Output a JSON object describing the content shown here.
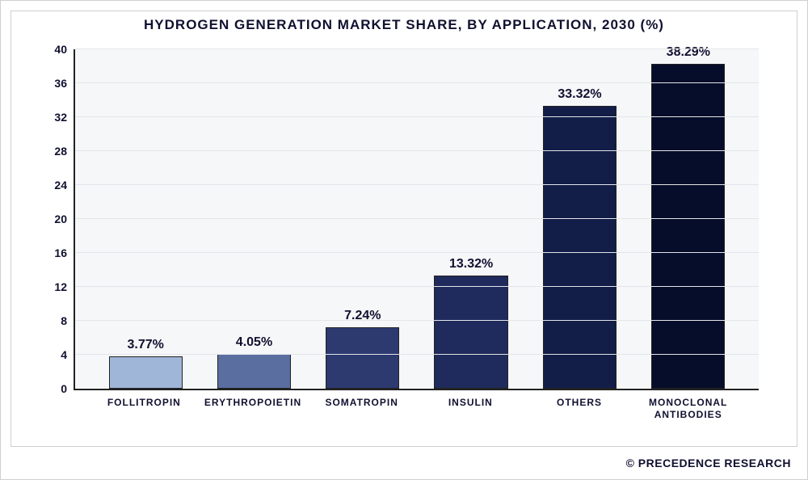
{
  "chart": {
    "type": "bar",
    "title": "HYDROGEN GENERATION MARKET SHARE, BY APPLICATION, 2030 (%)",
    "title_fontsize": 17,
    "title_color": "#101030",
    "background_color": "#ffffff",
    "plot_background": "#f6f7f8",
    "axis_color": "#222222",
    "grid_color": "#e3e5e8",
    "ylim": [
      0,
      40
    ],
    "ytick_step": 4,
    "yticks": [
      0,
      4,
      8,
      12,
      16,
      20,
      24,
      28,
      32,
      36,
      40
    ],
    "bar_border_color": "#222222",
    "bar_width_ratio": 0.68,
    "value_label_fontsize": 16,
    "value_label_color": "#101030",
    "xlabel_fontsize": 12,
    "xlabel_color": "#101030",
    "categories": [
      {
        "label": "FOLLITROPIN",
        "value": 3.77,
        "value_text": "3.77%",
        "color": "#9fb6d9"
      },
      {
        "label": "ERYTHROPOIETIN",
        "value": 4.05,
        "value_text": "4.05%",
        "color": "#5a6ea0"
      },
      {
        "label": "SOMATROPIN",
        "value": 7.24,
        "value_text": "7.24%",
        "color": "#2c3a70"
      },
      {
        "label": "INSULIN",
        "value": 13.32,
        "value_text": "13.32%",
        "color": "#1f2b5c"
      },
      {
        "label": "OTHERS",
        "value": 33.32,
        "value_text": "33.32%",
        "color": "#121d48"
      },
      {
        "label": "MONOCLONAL ANTIBODIES",
        "value": 38.29,
        "value_text": "38.29%",
        "color": "#060d2a"
      }
    ],
    "copyright": "© PRECEDENCE RESEARCH"
  }
}
